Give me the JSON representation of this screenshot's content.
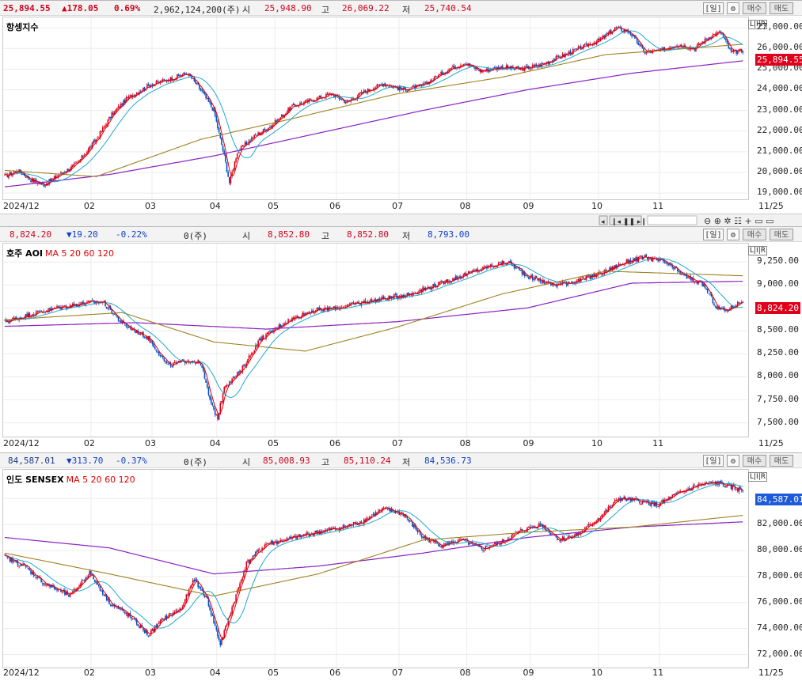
{
  "panels": [
    {
      "id": "hsi",
      "header": {
        "price": "25,894.55",
        "change": "▲178.05",
        "pct": "0.69%",
        "volume": "2,962,124,200(주)",
        "open_label": "시",
        "open": "25,948.90",
        "high_label": "고",
        "high": "26,069.22",
        "low_label": "저",
        "low": "25,740.54"
      },
      "title": "항셍지수",
      "ma_label": "",
      "last_tag": "25,894.55"
    },
    {
      "id": "aoi",
      "header": {
        "price": "8,824.20",
        "change": "▼19.20",
        "pct": "-0.22%",
        "volume": "0(주)",
        "open_label": "시",
        "open": "8,852.80",
        "high_label": "고",
        "high": "8,852.80",
        "low_label": "저",
        "low": "8,793.00"
      },
      "title": "호주 AOI",
      "ma_label": "MA 5 20 60 120",
      "last_tag": "8,824.20"
    },
    {
      "id": "sensex",
      "header": {
        "price": "84,587.01",
        "change": "▼313.70",
        "pct": "-0.37%",
        "volume": "0(주)",
        "open_label": "시",
        "open": "85,008.93",
        "high_label": "고",
        "high": "85,110.24",
        "low_label": "저",
        "low": "84,536.73"
      },
      "title": "인도 SENSEX",
      "ma_label": "MA 5 20 60 120",
      "last_tag": "84,587.01"
    }
  ],
  "buttons": {
    "period": "[일]",
    "settings": "⚙",
    "buy": "매수",
    "sell": "매도"
  },
  "lir": "L|I|R",
  "x_start": "2024/12",
  "x_end": "11/25",
  "months": [
    "02",
    "03",
    "04",
    "05",
    "06",
    "07",
    "08",
    "09",
    "10",
    "11"
  ],
  "colors": {
    "up": "#e0001b",
    "down": "#0050c8",
    "ma5": "#e00000",
    "ma20": "#20a8d0",
    "ma60": "#a08020",
    "ma120": "#8a20c0",
    "tag_up": "#e0001b",
    "tag_down": "#1e5bd8"
  },
  "chart_data": [
    {
      "type": "candlestick",
      "title": "항셍지수",
      "x_range": [
        "2024/12",
        "11/25"
      ],
      "yticks": [
        "27,000.00",
        "26,000.00",
        "25,000.00",
        "24,000.00",
        "23,000.00",
        "22,000.00",
        "21,000.00",
        "20,000.00",
        "19,000.00"
      ],
      "ylim": [
        18700,
        27500
      ],
      "keypoints": [
        [
          0,
          19800
        ],
        [
          10,
          20100
        ],
        [
          20,
          19650
        ],
        [
          30,
          19400
        ],
        [
          42,
          19900
        ],
        [
          55,
          20400
        ],
        [
          70,
          21600
        ],
        [
          82,
          22800
        ],
        [
          94,
          23600
        ],
        [
          110,
          24200
        ],
        [
          125,
          24500
        ],
        [
          140,
          24800
        ],
        [
          150,
          24000
        ],
        [
          160,
          23000
        ],
        [
          168,
          20800
        ],
        [
          172,
          19500
        ],
        [
          178,
          21000
        ],
        [
          190,
          21700
        ],
        [
          205,
          22300
        ],
        [
          220,
          23200
        ],
        [
          235,
          23500
        ],
        [
          250,
          23800
        ],
        [
          262,
          23400
        ],
        [
          275,
          23900
        ],
        [
          290,
          24300
        ],
        [
          305,
          24000
        ],
        [
          320,
          24200
        ],
        [
          340,
          25000
        ],
        [
          352,
          25300
        ],
        [
          365,
          24900
        ],
        [
          380,
          25100
        ],
        [
          395,
          25000
        ],
        [
          410,
          25200
        ],
        [
          425,
          25600
        ],
        [
          440,
          26000
        ],
        [
          455,
          26400
        ],
        [
          468,
          27000
        ],
        [
          478,
          26800
        ],
        [
          490,
          25800
        ],
        [
          502,
          25900
        ],
        [
          515,
          26200
        ],
        [
          528,
          26000
        ],
        [
          540,
          26600
        ],
        [
          548,
          26800
        ],
        [
          556,
          25800
        ],
        [
          565,
          25900
        ]
      ],
      "ma120_knots": [
        [
          0,
          19300
        ],
        [
          80,
          19900
        ],
        [
          160,
          20800
        ],
        [
          240,
          21900
        ],
        [
          320,
          23000
        ],
        [
          400,
          24000
        ],
        [
          480,
          24800
        ],
        [
          565,
          25400
        ]
      ],
      "ma60_knots": [
        [
          0,
          20100
        ],
        [
          70,
          19800
        ],
        [
          150,
          21600
        ],
        [
          220,
          22600
        ],
        [
          300,
          23800
        ],
        [
          380,
          24600
        ],
        [
          460,
          25700
        ],
        [
          565,
          26200
        ]
      ]
    },
    {
      "type": "candlestick",
      "title": "호주 AOI",
      "x_range": [
        "2024/12",
        "11/25"
      ],
      "series": [
        "MA 5",
        "20",
        "60",
        "120"
      ],
      "yticks": [
        "9,250.00",
        "9,000.00",
        "8,750.00",
        "8,500.00",
        "8,250.00",
        "8,000.00",
        "7,750.00",
        "7,500.00"
      ],
      "ylim": [
        7350,
        9450
      ],
      "keypoints": [
        [
          0,
          8600
        ],
        [
          20,
          8680
        ],
        [
          40,
          8750
        ],
        [
          60,
          8800
        ],
        [
          75,
          8820
        ],
        [
          90,
          8580
        ],
        [
          110,
          8420
        ],
        [
          125,
          8120
        ],
        [
          140,
          8180
        ],
        [
          150,
          8150
        ],
        [
          158,
          7700
        ],
        [
          163,
          7550
        ],
        [
          168,
          7900
        ],
        [
          180,
          8050
        ],
        [
          195,
          8400
        ],
        [
          215,
          8600
        ],
        [
          235,
          8720
        ],
        [
          255,
          8750
        ],
        [
          270,
          8800
        ],
        [
          290,
          8850
        ],
        [
          310,
          8900
        ],
        [
          330,
          9000
        ],
        [
          350,
          9100
        ],
        [
          370,
          9200
        ],
        [
          385,
          9250
        ],
        [
          400,
          9100
        ],
        [
          420,
          9000
        ],
        [
          440,
          9050
        ],
        [
          460,
          9150
        ],
        [
          475,
          9250
        ],
        [
          490,
          9300
        ],
        [
          505,
          9250
        ],
        [
          520,
          9100
        ],
        [
          535,
          9000
        ],
        [
          545,
          8750
        ],
        [
          552,
          8720
        ],
        [
          565,
          8830
        ]
      ],
      "ma120_knots": [
        [
          0,
          8550
        ],
        [
          100,
          8590
        ],
        [
          200,
          8520
        ],
        [
          300,
          8600
        ],
        [
          400,
          8750
        ],
        [
          480,
          9020
        ],
        [
          565,
          9040
        ]
      ],
      "ma60_knots": [
        [
          0,
          8620
        ],
        [
          90,
          8700
        ],
        [
          160,
          8380
        ],
        [
          230,
          8280
        ],
        [
          300,
          8540
        ],
        [
          380,
          8900
        ],
        [
          460,
          9150
        ],
        [
          565,
          9100
        ]
      ]
    },
    {
      "type": "candlestick",
      "title": "인도 SENSEX",
      "x_range": [
        "2024/12",
        "11/25"
      ],
      "series": [
        "MA 5",
        "20",
        "60",
        "120"
      ],
      "yticks": [
        "84,000.00",
        "82,000.00",
        "80,000.00",
        "78,000.00",
        "76,000.00",
        "74,000.00",
        "72,000.00"
      ],
      "ylim": [
        71000,
        86200
      ],
      "keypoints": [
        [
          0,
          79500
        ],
        [
          15,
          78800
        ],
        [
          30,
          77500
        ],
        [
          50,
          76500
        ],
        [
          65,
          78300
        ],
        [
          80,
          76000
        ],
        [
          95,
          75000
        ],
        [
          110,
          73500
        ],
        [
          122,
          74800
        ],
        [
          135,
          75500
        ],
        [
          145,
          77800
        ],
        [
          155,
          76200
        ],
        [
          165,
          72800
        ],
        [
          172,
          75000
        ],
        [
          185,
          79000
        ],
        [
          200,
          80500
        ],
        [
          215,
          80800
        ],
        [
          230,
          81200
        ],
        [
          245,
          81500
        ],
        [
          260,
          81800
        ],
        [
          275,
          82300
        ],
        [
          290,
          83200
        ],
        [
          305,
          82800
        ],
        [
          320,
          81000
        ],
        [
          335,
          80400
        ],
        [
          350,
          80800
        ],
        [
          365,
          80100
        ],
        [
          380,
          80600
        ],
        [
          395,
          81500
        ],
        [
          410,
          82000
        ],
        [
          425,
          80800
        ],
        [
          440,
          81300
        ],
        [
          455,
          82500
        ],
        [
          470,
          84000
        ],
        [
          485,
          83800
        ],
        [
          500,
          83500
        ],
        [
          512,
          84200
        ],
        [
          530,
          85000
        ],
        [
          545,
          85200
        ],
        [
          565,
          84600
        ]
      ],
      "ma120_knots": [
        [
          0,
          81000
        ],
        [
          80,
          80200
        ],
        [
          160,
          78200
        ],
        [
          240,
          78800
        ],
        [
          320,
          79800
        ],
        [
          400,
          81000
        ],
        [
          480,
          81800
        ],
        [
          565,
          82200
        ]
      ],
      "ma60_knots": [
        [
          0,
          79800
        ],
        [
          80,
          78200
        ],
        [
          160,
          76500
        ],
        [
          240,
          78200
        ],
        [
          320,
          80800
        ],
        [
          400,
          81400
        ],
        [
          480,
          81800
        ],
        [
          565,
          82700
        ]
      ]
    }
  ]
}
